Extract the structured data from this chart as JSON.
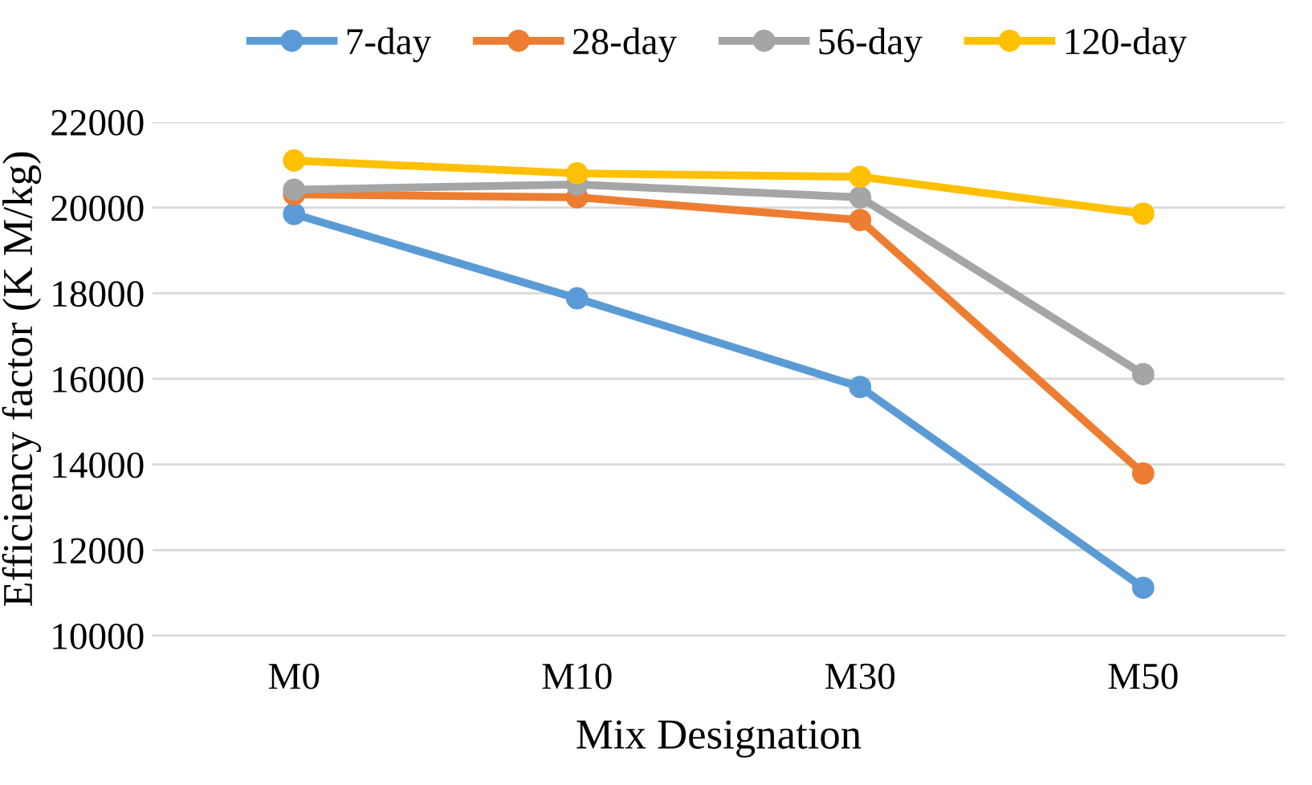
{
  "chart_data": {
    "type": "line",
    "xlabel": "Mix Designation",
    "ylabel": "Efficiency factor (K M/kg)",
    "categories": [
      "M0",
      "M10",
      "M30",
      "M50"
    ],
    "series": [
      {
        "name": "7-day",
        "color": "#5b9bd5",
        "values": [
          19850,
          17880,
          15810,
          11120
        ]
      },
      {
        "name": "28-day",
        "color": "#ed7d31",
        "values": [
          20310,
          20240,
          19710,
          13790
        ]
      },
      {
        "name": "56-day",
        "color": "#a5a5a5",
        "values": [
          20420,
          20540,
          20240,
          16110
        ]
      },
      {
        "name": "120-day",
        "color": "#ffc000",
        "values": [
          21100,
          20800,
          20720,
          19860
        ]
      }
    ],
    "ylim": [
      10000,
      22000
    ],
    "yticks": [
      10000,
      12000,
      14000,
      16000,
      18000,
      20000,
      22000
    ],
    "grid": "y",
    "legend": "top",
    "marker": "circle",
    "line_style": "solid"
  }
}
